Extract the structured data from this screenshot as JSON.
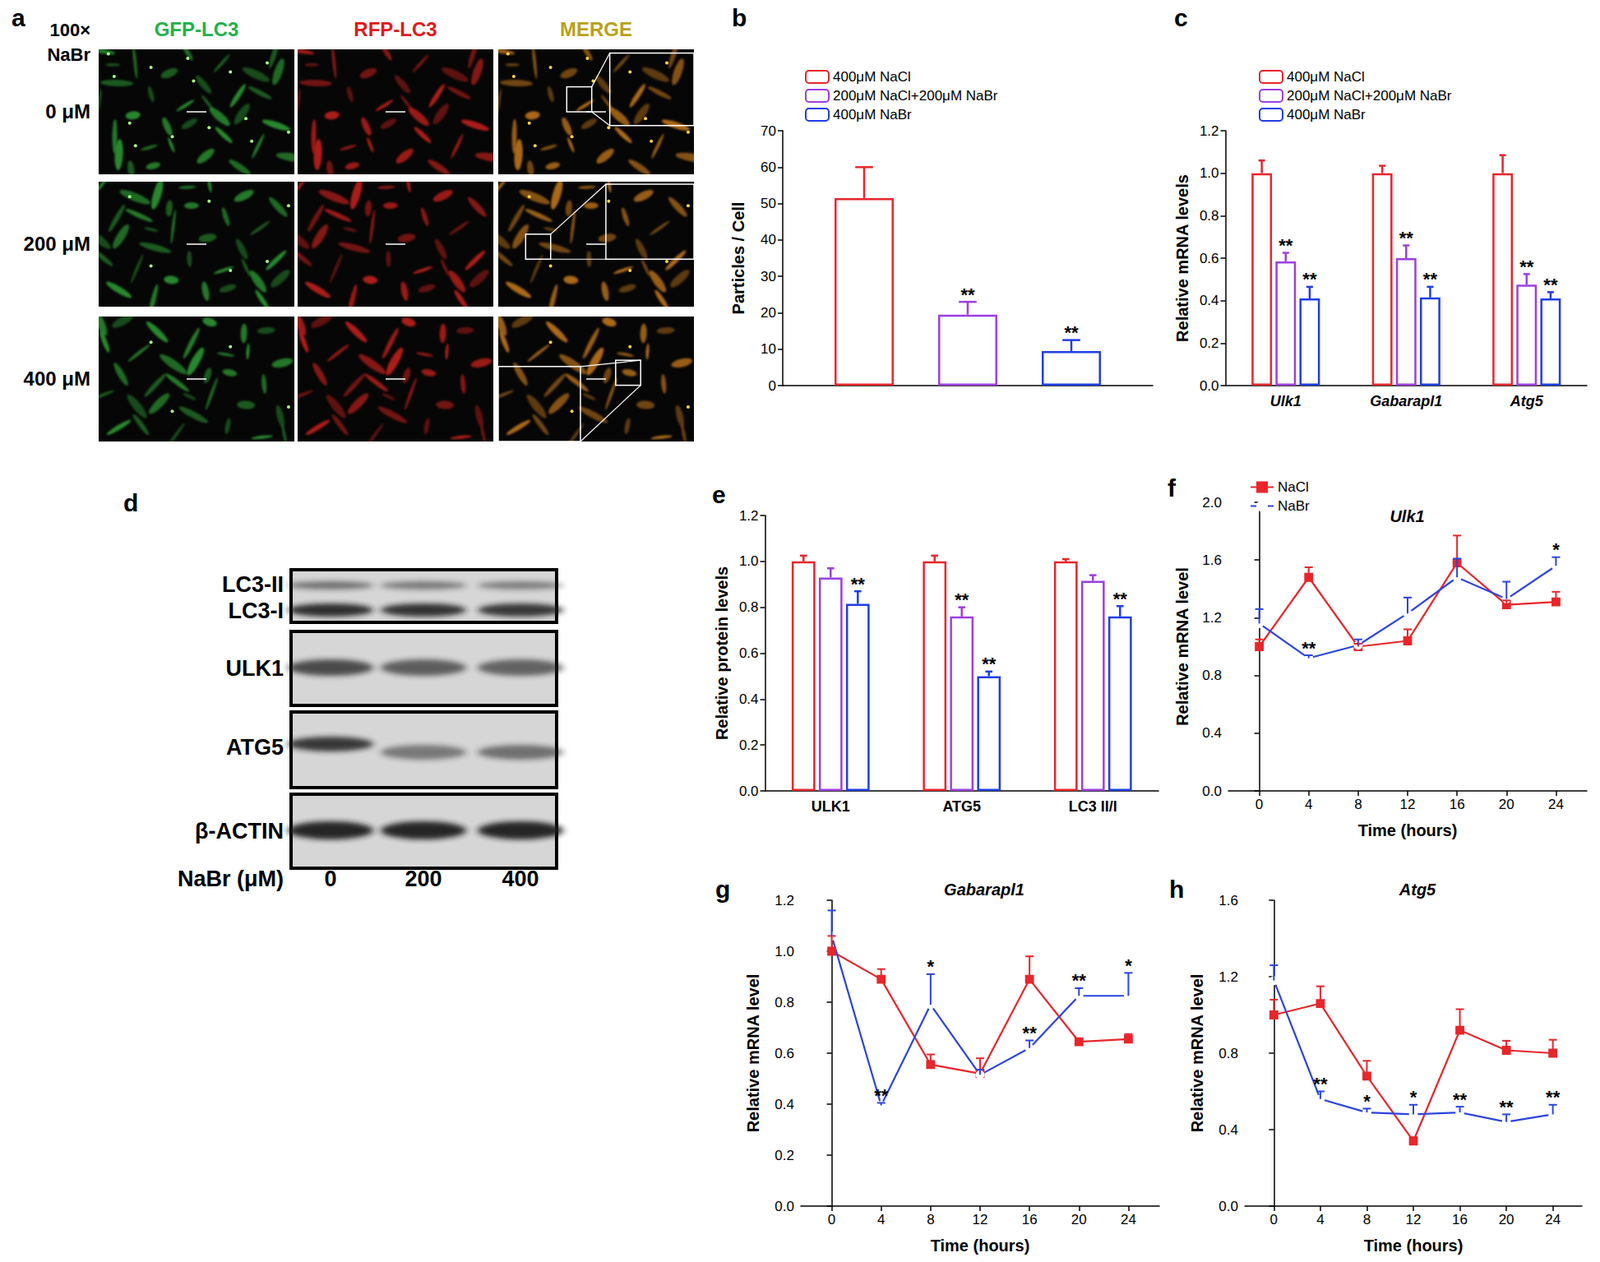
{
  "chart_data": [
    {
      "panel": "b",
      "type": "bar",
      "ylabel": "Particles / Cell",
      "categories": [
        null
      ],
      "ylim": [
        0,
        70
      ],
      "yticks": [
        0,
        10,
        20,
        30,
        40,
        50,
        60,
        70
      ],
      "grid": false,
      "legend": "top-left",
      "series": [
        {
          "name": "400μM NaCl",
          "color": "#e8262b",
          "values": [
            51.5
          ],
          "errors": [
            8.5
          ],
          "significance": [
            null
          ]
        },
        {
          "name": "200μM NaCl+200μM NaBr",
          "color": "#9d3fe0",
          "values": [
            19.5
          ],
          "errors": [
            3.5
          ],
          "significance": [
            "**"
          ]
        },
        {
          "name": "400μM NaBr",
          "color": "#1f3ee6",
          "values": [
            9.5
          ],
          "errors": [
            3.0
          ],
          "significance": [
            "**"
          ]
        }
      ]
    },
    {
      "panel": "c",
      "type": "bar",
      "ylabel": "Relative mRNA levels",
      "categories": [
        "Ulk1",
        "Gabarapl1",
        "Atg5"
      ],
      "ylim": [
        0,
        1.2
      ],
      "yticks": [
        {
          "value": 0,
          "label": "0.0"
        },
        0.2,
        0.4,
        0.6,
        0.8,
        {
          "value": 1,
          "label": "1.0"
        },
        1.2
      ],
      "grid": false,
      "legend": "top-left",
      "series": [
        {
          "name": "400μM NaCl",
          "color": "#e8262b",
          "values": [
            1.0,
            1.0,
            1.0
          ],
          "errors": [
            0.06,
            0.035,
            0.085
          ],
          "significance": [
            null,
            null,
            null
          ]
        },
        {
          "name": "200μM NaCl+200μM NaBr",
          "color": "#9d3fe0",
          "values": [
            0.585,
            0.6,
            0.475
          ],
          "errors": [
            0.04,
            0.06,
            0.05
          ],
          "significance": [
            "**",
            "**",
            "**"
          ]
        },
        {
          "name": "400μM NaBr",
          "color": "#1f3ee6",
          "values": [
            0.41,
            0.415,
            0.41
          ],
          "errors": [
            0.055,
            0.05,
            0.03
          ],
          "significance": [
            "**",
            "**",
            "**"
          ]
        }
      ]
    },
    {
      "panel": "e",
      "type": "bar",
      "ylabel": "Relative protein levels",
      "categories": [
        "ULK1",
        "ATG5",
        "LC3 II/I"
      ],
      "ylim": [
        0,
        1.2
      ],
      "yticks": [
        {
          "value": 0,
          "label": "0.0"
        },
        0.2,
        0.4,
        0.6,
        0.8,
        {
          "value": 1,
          "label": "1.0"
        },
        1.2
      ],
      "grid": false,
      "series": [
        {
          "color": "#e8262b",
          "values": [
            1.0,
            1.0,
            1.0
          ],
          "errors": [
            0.025,
            0.025,
            0.01
          ],
          "significance": [
            null,
            null,
            null
          ]
        },
        {
          "color": "#9d3fe0",
          "values": [
            0.93,
            0.76,
            0.915
          ],
          "errors": [
            0.04,
            0.04,
            0.025
          ],
          "significance": [
            null,
            "**",
            null
          ]
        },
        {
          "color": "#1f3ee6",
          "values": [
            0.815,
            0.5,
            0.76
          ],
          "errors": [
            0.055,
            0.02,
            0.045
          ],
          "significance": [
            "**",
            "**",
            "**"
          ]
        }
      ]
    },
    {
      "panel": "f",
      "type": "line",
      "title": "Ulk1",
      "xlabel": "Time (hours)",
      "ylabel": "Relative mRNA level",
      "x": [
        0,
        4,
        8,
        12,
        16,
        20,
        24
      ],
      "xlim": [
        -2.5,
        26.5
      ],
      "xticks": [
        0,
        4,
        8,
        12,
        16,
        20,
        24
      ],
      "ylim": [
        0,
        2.0
      ],
      "yticks": [
        {
          "value": 0,
          "label": "0.0"
        },
        0.4,
        0.8,
        1.2,
        1.6,
        {
          "value": 2,
          "label": "2.0"
        }
      ],
      "grid": false,
      "legend": "top-left",
      "series": [
        {
          "name": "NaCl",
          "color": "#e8262b",
          "marker": "square",
          "values": [
            1.0,
            1.48,
            1.0,
            1.04,
            1.58,
            1.29,
            1.31
          ],
          "errors": [
            0.05,
            0.07,
            0.02,
            0.08,
            0.19,
            0.03,
            0.07
          ],
          "significance": [
            null,
            null,
            null,
            null,
            null,
            null,
            null
          ]
        },
        {
          "name": "NaBr",
          "color": "#2b45e0",
          "marker": "open circle",
          "values": [
            1.16,
            0.92,
            1.01,
            1.23,
            1.48,
            1.33,
            1.56
          ],
          "errors": [
            0.1,
            0.02,
            0.04,
            0.11,
            0.13,
            0.12,
            0.06
          ],
          "significance": [
            null,
            "**",
            null,
            null,
            null,
            null,
            "*"
          ]
        }
      ]
    },
    {
      "panel": "g",
      "type": "line",
      "title": "Gabarapl1",
      "xlabel": "Time (hours)",
      "ylabel": "Relative mRNA level",
      "x": [
        0,
        4,
        8,
        12,
        16,
        20,
        24
      ],
      "xlim": [
        -2.5,
        26.5
      ],
      "xticks": [
        0,
        4,
        8,
        12,
        16,
        20,
        24
      ],
      "ylim": [
        0,
        1.2
      ],
      "yticks": [
        {
          "value": 0,
          "label": "0.0"
        },
        0.2,
        0.4,
        0.6,
        0.8,
        {
          "value": 1,
          "label": "1.0"
        },
        1.2
      ],
      "grid": false,
      "series": [
        {
          "color": "#e8262b",
          "marker": "square",
          "values": [
            1.0,
            0.89,
            0.555,
            0.52,
            0.89,
            0.645,
            0.655
          ],
          "errors": [
            0.06,
            0.04,
            0.04,
            0.06,
            0.09,
            0.01,
            0.02
          ],
          "significance": [
            null,
            null,
            null,
            null,
            null,
            null,
            null
          ]
        },
        {
          "color": "#2b45e0",
          "marker": "open circle",
          "values": [
            1.06,
            0.395,
            0.79,
            0.515,
            0.62,
            0.825,
            0.825
          ],
          "errors": [
            0.1,
            0.01,
            0.12,
            0.02,
            0.03,
            0.03,
            0.09
          ],
          "significance": [
            null,
            "**",
            "*",
            null,
            "**",
            "**",
            "*"
          ]
        }
      ]
    },
    {
      "panel": "h",
      "type": "line",
      "title": "Atg5",
      "xlabel": "Time (hours)",
      "ylabel": "Relative mRNA level",
      "x": [
        0,
        4,
        8,
        12,
        16,
        20,
        24
      ],
      "xlim": [
        -2.5,
        26.5
      ],
      "xticks": [
        0,
        4,
        8,
        12,
        16,
        20,
        24
      ],
      "ylim": [
        0,
        1.6
      ],
      "yticks": [
        {
          "value": 0,
          "label": "0.0"
        },
        0.4,
        0.8,
        1.2,
        1.6
      ],
      "grid": false,
      "series": [
        {
          "color": "#e8262b",
          "marker": "square",
          "values": [
            1.0,
            1.06,
            0.68,
            0.34,
            0.92,
            0.815,
            0.8
          ],
          "errors": [
            0.08,
            0.09,
            0.08,
            0.02,
            0.11,
            0.05,
            0.07
          ],
          "significance": [
            null,
            null,
            null,
            null,
            null,
            null,
            null
          ]
        },
        {
          "color": "#2b45e0",
          "marker": "open circle",
          "values": [
            1.18,
            0.56,
            0.49,
            0.48,
            0.49,
            0.44,
            0.48
          ],
          "errors": [
            0.08,
            0.04,
            0.02,
            0.05,
            0.03,
            0.04,
            0.05
          ],
          "significance": [
            null,
            "**",
            "*",
            "*",
            "**",
            "**",
            "**"
          ]
        }
      ]
    }
  ],
  "figure_panels": [
    {
      "panel": "a",
      "type": "micrograph",
      "magnification": "100×",
      "treatment": "NaBr",
      "columns": [
        "GFP-LC3",
        "RFP-LC3",
        "MERGE"
      ],
      "colors": [
        "#22b14c",
        "#e01b1b",
        "#b8a21a"
      ],
      "rows": [
        "0 μM",
        "200 μM",
        "400 μM"
      ]
    },
    {
      "panel": "d",
      "type": "western_blot",
      "bands": [
        "LC3-II",
        "LC3-I",
        "ULK1",
        "ATG5",
        "β-ACTIN"
      ],
      "lane_title": "NaBr (μM)",
      "lanes": [
        "0",
        "200",
        "400"
      ]
    }
  ]
}
